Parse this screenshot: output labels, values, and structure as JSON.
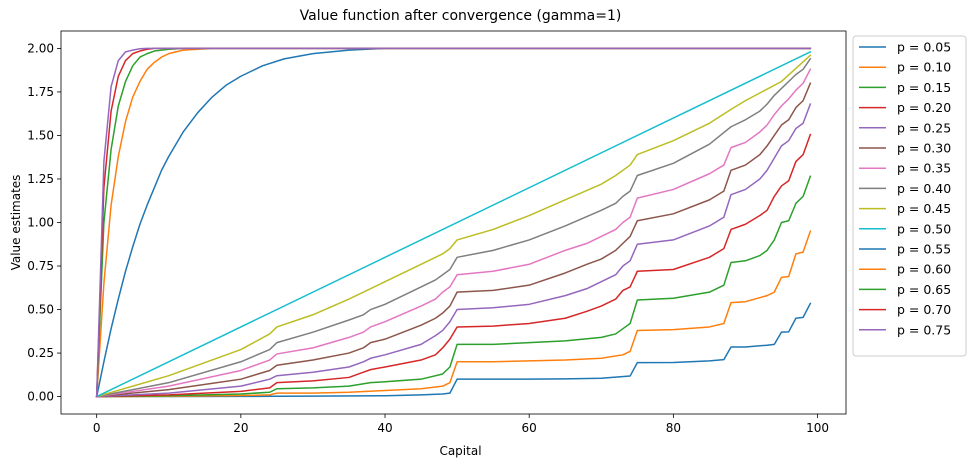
{
  "chart_data": {
    "type": "line",
    "title": "Value function after convergence (gamma=1)",
    "xlabel": "Capital",
    "ylabel": "Value estimates",
    "xlim": [
      -4.95,
      103.95
    ],
    "ylim": [
      -0.1,
      2.1
    ],
    "xticks": [
      0,
      20,
      40,
      60,
      80,
      100
    ],
    "yticks": [
      0.0,
      0.25,
      0.5,
      0.75,
      1.0,
      1.25,
      1.5,
      1.75,
      2.0
    ],
    "xtick_labels": [
      "0",
      "20",
      "40",
      "60",
      "80",
      "100"
    ],
    "ytick_labels": [
      "0.00",
      "0.25",
      "0.50",
      "0.75",
      "1.00",
      "1.25",
      "1.50",
      "1.75",
      "2.00"
    ],
    "grid": false,
    "legend_position": "outside-right",
    "x_domain": [
      0,
      99
    ],
    "series": [
      {
        "name": "p = 0.05",
        "color": "#1f77b4",
        "x": [
          0,
          10,
          20,
          25,
          30,
          40,
          45,
          48,
          49,
          50,
          55,
          60,
          65,
          70,
          74,
          75,
          80,
          85,
          87,
          88,
          90,
          93,
          94,
          95,
          96,
          97,
          98,
          99
        ],
        "y": [
          0,
          0.0005,
          0.001,
          0.002,
          0.003,
          0.005,
          0.01,
          0.015,
          0.02,
          0.1,
          0.1,
          0.1,
          0.102,
          0.105,
          0.118,
          0.195,
          0.196,
          0.205,
          0.212,
          0.285,
          0.285,
          0.295,
          0.3,
          0.37,
          0.372,
          0.45,
          0.455,
          0.535
        ]
      },
      {
        "name": "p = 0.10",
        "color": "#ff7f0e",
        "x": [
          0,
          10,
          20,
          24,
          25,
          30,
          35,
          40,
          45,
          48,
          49,
          50,
          55,
          60,
          65,
          70,
          73,
          74,
          75,
          80,
          85,
          87,
          88,
          90,
          93,
          94,
          95,
          96,
          97,
          98,
          99
        ],
        "y": [
          0,
          0.002,
          0.006,
          0.01,
          0.02,
          0.02,
          0.025,
          0.035,
          0.045,
          0.06,
          0.08,
          0.2,
          0.2,
          0.205,
          0.21,
          0.22,
          0.24,
          0.26,
          0.38,
          0.385,
          0.4,
          0.42,
          0.54,
          0.545,
          0.58,
          0.6,
          0.685,
          0.69,
          0.82,
          0.83,
          0.95
        ]
      },
      {
        "name": "p = 0.15",
        "color": "#2ca02c",
        "x": [
          0,
          10,
          20,
          24,
          25,
          30,
          35,
          38,
          40,
          45,
          48,
          49,
          50,
          55,
          60,
          65,
          70,
          72,
          73,
          74,
          75,
          80,
          85,
          87,
          88,
          90,
          92,
          93,
          94,
          95,
          96,
          97,
          98,
          99
        ],
        "y": [
          0,
          0.005,
          0.015,
          0.025,
          0.045,
          0.05,
          0.06,
          0.08,
          0.085,
          0.1,
          0.13,
          0.17,
          0.3,
          0.3,
          0.31,
          0.32,
          0.34,
          0.36,
          0.39,
          0.42,
          0.555,
          0.565,
          0.6,
          0.64,
          0.77,
          0.78,
          0.81,
          0.84,
          0.9,
          1.0,
          1.01,
          1.11,
          1.15,
          1.265
        ]
      },
      {
        "name": "p = 0.20",
        "color": "#d62728",
        "x": [
          0,
          10,
          20,
          24,
          25,
          30,
          35,
          37,
          38,
          40,
          45,
          47,
          48,
          49,
          50,
          55,
          60,
          65,
          68,
          70,
          72,
          73,
          74,
          75,
          80,
          85,
          87,
          88,
          90,
          92,
          93,
          94,
          95,
          96,
          97,
          98,
          99
        ],
        "y": [
          0,
          0.01,
          0.03,
          0.05,
          0.08,
          0.09,
          0.11,
          0.14,
          0.155,
          0.17,
          0.21,
          0.24,
          0.28,
          0.33,
          0.4,
          0.405,
          0.42,
          0.45,
          0.49,
          0.52,
          0.56,
          0.61,
          0.63,
          0.72,
          0.73,
          0.8,
          0.85,
          0.96,
          0.99,
          1.04,
          1.07,
          1.15,
          1.21,
          1.24,
          1.35,
          1.39,
          1.505
        ]
      },
      {
        "name": "p = 0.25",
        "color": "#9467bd",
        "x": [
          0,
          10,
          20,
          24,
          25,
          30,
          35,
          37,
          38,
          40,
          45,
          47,
          48,
          49,
          50,
          55,
          60,
          65,
          68,
          70,
          72,
          73,
          74,
          75,
          80,
          85,
          87,
          88,
          90,
          92,
          93,
          94,
          95,
          96,
          97,
          98,
          99
        ],
        "y": [
          0,
          0.02,
          0.06,
          0.1,
          0.12,
          0.14,
          0.17,
          0.2,
          0.22,
          0.24,
          0.3,
          0.35,
          0.38,
          0.43,
          0.5,
          0.51,
          0.53,
          0.58,
          0.62,
          0.66,
          0.7,
          0.75,
          0.78,
          0.875,
          0.9,
          0.98,
          1.03,
          1.16,
          1.19,
          1.25,
          1.3,
          1.37,
          1.44,
          1.47,
          1.54,
          1.57,
          1.68
        ]
      },
      {
        "name": "p = 0.30",
        "color": "#8c564b",
        "x": [
          0,
          10,
          20,
          24,
          25,
          30,
          35,
          37,
          38,
          40,
          45,
          47,
          48,
          49,
          50,
          55,
          60,
          65,
          68,
          70,
          72,
          73,
          74,
          75,
          80,
          85,
          87,
          88,
          90,
          92,
          93,
          94,
          95,
          96,
          97,
          98,
          99
        ],
        "y": [
          0,
          0.04,
          0.1,
          0.15,
          0.18,
          0.21,
          0.25,
          0.28,
          0.31,
          0.33,
          0.41,
          0.45,
          0.48,
          0.52,
          0.6,
          0.61,
          0.64,
          0.71,
          0.76,
          0.79,
          0.84,
          0.88,
          0.92,
          1.01,
          1.05,
          1.13,
          1.18,
          1.3,
          1.33,
          1.39,
          1.44,
          1.5,
          1.56,
          1.59,
          1.66,
          1.7,
          1.8
        ]
      },
      {
        "name": "p = 0.35",
        "color": "#e377c2",
        "x": [
          0,
          10,
          20,
          24,
          25,
          30,
          35,
          37,
          38,
          40,
          45,
          47,
          48,
          49,
          50,
          55,
          60,
          65,
          68,
          70,
          72,
          73,
          74,
          75,
          80,
          85,
          87,
          88,
          90,
          92,
          93,
          94,
          95,
          96,
          97,
          98,
          99
        ],
        "y": [
          0,
          0.06,
          0.15,
          0.21,
          0.245,
          0.28,
          0.34,
          0.37,
          0.4,
          0.43,
          0.52,
          0.56,
          0.6,
          0.63,
          0.7,
          0.72,
          0.76,
          0.84,
          0.88,
          0.92,
          0.96,
          1.0,
          1.03,
          1.14,
          1.19,
          1.28,
          1.33,
          1.43,
          1.46,
          1.52,
          1.56,
          1.62,
          1.67,
          1.71,
          1.76,
          1.8,
          1.88
        ]
      },
      {
        "name": "p = 0.40",
        "color": "#7f7f7f",
        "x": [
          0,
          10,
          20,
          24,
          25,
          30,
          35,
          37,
          38,
          40,
          45,
          47,
          48,
          49,
          50,
          55,
          60,
          65,
          70,
          72,
          73,
          74,
          75,
          80,
          85,
          88,
          90,
          92,
          93,
          94,
          95,
          96,
          97,
          98,
          99
        ],
        "y": [
          0,
          0.08,
          0.2,
          0.27,
          0.31,
          0.37,
          0.44,
          0.47,
          0.5,
          0.53,
          0.63,
          0.67,
          0.7,
          0.73,
          0.8,
          0.84,
          0.9,
          0.98,
          1.07,
          1.11,
          1.15,
          1.18,
          1.27,
          1.34,
          1.45,
          1.55,
          1.59,
          1.64,
          1.68,
          1.73,
          1.77,
          1.81,
          1.85,
          1.88,
          1.94
        ]
      },
      {
        "name": "p = 0.45",
        "color": "#bcbd22",
        "x": [
          0,
          10,
          20,
          24,
          25,
          30,
          35,
          40,
          45,
          48,
          49,
          50,
          55,
          60,
          65,
          70,
          72,
          74,
          75,
          80,
          85,
          88,
          90,
          95,
          99
        ],
        "y": [
          0,
          0.12,
          0.27,
          0.36,
          0.4,
          0.47,
          0.56,
          0.66,
          0.76,
          0.82,
          0.85,
          0.9,
          0.96,
          1.04,
          1.13,
          1.22,
          1.27,
          1.33,
          1.39,
          1.47,
          1.57,
          1.65,
          1.7,
          1.81,
          1.96
        ]
      },
      {
        "name": "p = 0.50",
        "color": "#17becf",
        "x": [
          0,
          99
        ],
        "y": [
          0,
          1.98
        ]
      },
      {
        "name": "p = 0.55",
        "color": "#1f77b4",
        "x": [
          0,
          1,
          2,
          3,
          4,
          5,
          6,
          7,
          8,
          9,
          10,
          12,
          14,
          16,
          18,
          20,
          23,
          26,
          30,
          35,
          40,
          99
        ],
        "y": [
          0,
          0.2,
          0.39,
          0.56,
          0.72,
          0.86,
          0.99,
          1.1,
          1.2,
          1.3,
          1.38,
          1.52,
          1.63,
          1.72,
          1.79,
          1.84,
          1.9,
          1.94,
          1.97,
          1.99,
          2.0,
          2.0
        ]
      },
      {
        "name": "p = 0.60",
        "color": "#ff7f0e",
        "x": [
          0,
          1,
          2,
          3,
          4,
          5,
          6,
          7,
          8,
          9,
          10,
          12,
          14,
          16,
          20,
          99
        ],
        "y": [
          0,
          0.65,
          1.1,
          1.38,
          1.58,
          1.72,
          1.81,
          1.88,
          1.92,
          1.95,
          1.97,
          1.99,
          1.995,
          2.0,
          2.0,
          2.0
        ]
      },
      {
        "name": "p = 0.65",
        "color": "#2ca02c",
        "x": [
          0,
          1,
          2,
          3,
          4,
          5,
          6,
          7,
          8,
          10,
          12,
          99
        ],
        "y": [
          0,
          1.0,
          1.42,
          1.67,
          1.81,
          1.9,
          1.95,
          1.97,
          1.985,
          1.995,
          2.0,
          2.0
        ]
      },
      {
        "name": "p = 0.70",
        "color": "#d62728",
        "x": [
          0,
          1,
          2,
          3,
          4,
          5,
          6,
          7,
          8,
          10,
          99
        ],
        "y": [
          0,
          1.2,
          1.64,
          1.84,
          1.93,
          1.97,
          1.985,
          1.995,
          2.0,
          2.0,
          2.0
        ]
      },
      {
        "name": "p = 0.75",
        "color": "#9467bd",
        "x": [
          0,
          1,
          2,
          3,
          4,
          5,
          6,
          7,
          8,
          99
        ],
        "y": [
          0,
          1.35,
          1.78,
          1.93,
          1.98,
          1.99,
          1.998,
          2.0,
          2.0,
          2.0
        ]
      }
    ]
  }
}
